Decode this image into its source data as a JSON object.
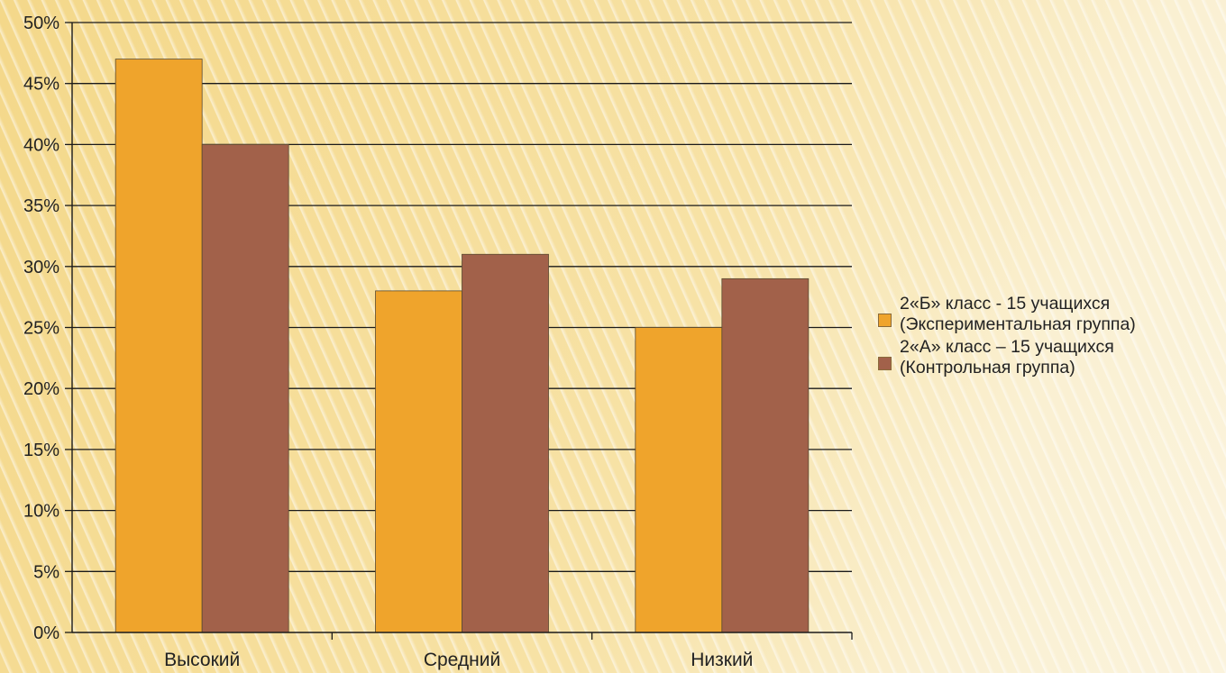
{
  "chart_data": {
    "type": "bar",
    "categories": [
      "Высокий",
      "Средний",
      "Низкий"
    ],
    "series": [
      {
        "name": "2«Б» класс - 15 учащихся (Экспериментальная группа)",
        "name_lines": [
          "2«Б» класс - 15 учащихся",
          "(Экспериментальная группа)"
        ],
        "color": "#efa42c",
        "values": [
          47,
          28,
          25
        ]
      },
      {
        "name": "2«А» класс – 15 учащихся (Контрольная группа)",
        "name_lines": [
          "2«А» класс – 15 учащихся",
          "(Контрольная группа)"
        ],
        "color": "#a2614a",
        "values": [
          40,
          31,
          29
        ]
      }
    ],
    "y_ticks": [
      "0%",
      "5%",
      "10%",
      "15%",
      "20%",
      "25%",
      "30%",
      "35%",
      "40%",
      "45%",
      "50%"
    ],
    "ylim": [
      0,
      50
    ],
    "ytick_step": 5,
    "grid": true,
    "legend_position": "right",
    "title": "",
    "xlabel": "",
    "ylabel": ""
  }
}
